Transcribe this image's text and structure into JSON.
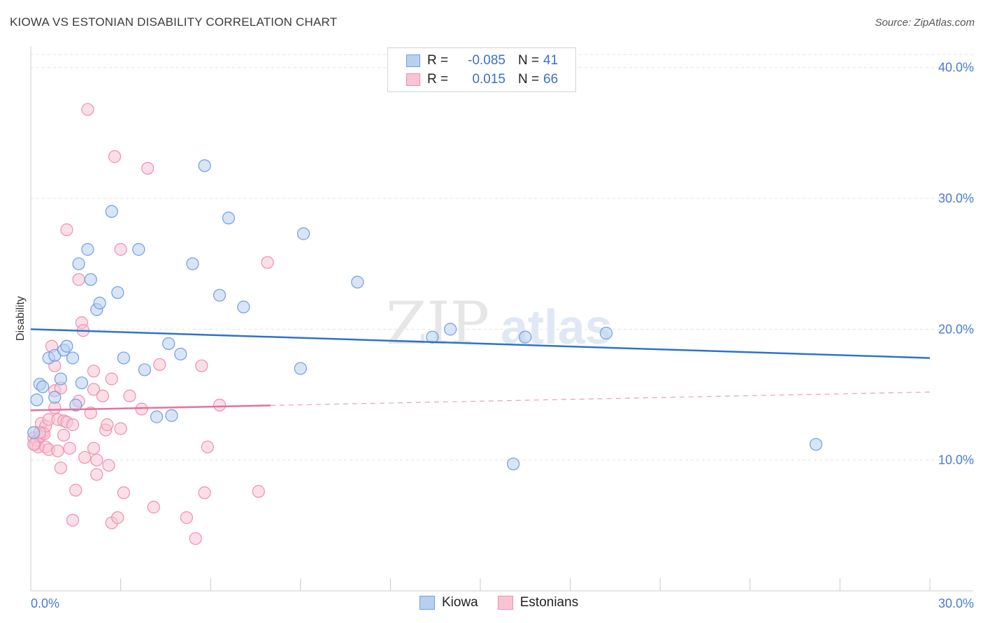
{
  "header": {
    "title": "KIOWA VS ESTONIAN DISABILITY CORRELATION CHART",
    "source": "Source: ZipAtlas.com"
  },
  "watermark": {
    "zip": "ZIP",
    "atlas": "atlas"
  },
  "legend": {
    "rows": [
      {
        "r_label": "R =",
        "r_value": "-0.085",
        "n_label": "N =",
        "n_value": "41",
        "fill": "#b8d0f0",
        "stroke": "#6e9fe0"
      },
      {
        "r_label": "R =",
        "r_value": "0.015",
        "n_label": "N =",
        "n_value": "66",
        "fill": "#f8c4d4",
        "stroke": "#ee8fae"
      }
    ]
  },
  "bottom_legend": {
    "items": [
      "Kiowa",
      "Estonians"
    ]
  },
  "chart_data": {
    "type": "scatter",
    "title": "KIOWA VS ESTONIAN DISABILITY CORRELATION CHART",
    "xlabel": "",
    "ylabel": "Disability",
    "xlim": [
      0,
      30
    ],
    "ylim": [
      0,
      41
    ],
    "x_tick_labels": [
      "0.0%",
      "30.0%"
    ],
    "y_ticks": [
      10,
      20,
      30,
      40
    ],
    "y_tick_labels": [
      "10.0%",
      "20.0%",
      "30.0%",
      "40.0%"
    ],
    "grid": true,
    "series": [
      {
        "name": "Kiowa",
        "color": "#6e9fe0",
        "fill": "#b8d0f0",
        "trend": {
          "x": [
            0,
            30
          ],
          "y": [
            20.0,
            17.8
          ],
          "dashed_from": null
        },
        "points": [
          [
            0.2,
            14.6
          ],
          [
            0.3,
            15.8
          ],
          [
            0.4,
            15.6
          ],
          [
            0.6,
            17.8
          ],
          [
            0.8,
            14.8
          ],
          [
            0.8,
            18.0
          ],
          [
            1.0,
            16.2
          ],
          [
            1.1,
            18.4
          ],
          [
            1.2,
            18.7
          ],
          [
            1.4,
            17.8
          ],
          [
            1.5,
            14.2
          ],
          [
            1.6,
            25.0
          ],
          [
            1.7,
            15.9
          ],
          [
            1.9,
            26.1
          ],
          [
            2.0,
            23.8
          ],
          [
            2.2,
            21.5
          ],
          [
            2.3,
            22.0
          ],
          [
            2.7,
            29.0
          ],
          [
            2.9,
            22.8
          ],
          [
            3.1,
            17.8
          ],
          [
            3.6,
            26.1
          ],
          [
            3.8,
            16.9
          ],
          [
            4.2,
            13.3
          ],
          [
            4.6,
            18.9
          ],
          [
            4.7,
            13.4
          ],
          [
            5.0,
            18.1
          ],
          [
            5.4,
            25.0
          ],
          [
            5.8,
            32.5
          ],
          [
            6.3,
            22.6
          ],
          [
            6.6,
            28.5
          ],
          [
            7.1,
            21.7
          ],
          [
            9.1,
            27.3
          ],
          [
            9.0,
            17.0
          ],
          [
            10.9,
            23.6
          ],
          [
            13.4,
            19.4
          ],
          [
            14.0,
            20.0
          ],
          [
            16.1,
            9.7
          ],
          [
            16.5,
            19.4
          ],
          [
            19.2,
            19.7
          ],
          [
            26.2,
            11.2
          ],
          [
            0.1,
            12.1
          ]
        ]
      },
      {
        "name": "Estonians",
        "color": "#ee8fae",
        "fill": "#f8c4d4",
        "trend": {
          "x": [
            0,
            30
          ],
          "y": [
            13.8,
            15.2
          ],
          "dashed_from": 8
        },
        "points": [
          [
            0.1,
            11.7
          ],
          [
            0.15,
            11.2
          ],
          [
            0.2,
            11.5
          ],
          [
            0.25,
            11.0
          ],
          [
            0.3,
            11.8
          ],
          [
            0.35,
            12.8
          ],
          [
            0.4,
            12.1
          ],
          [
            0.45,
            12.0
          ],
          [
            0.5,
            11.0
          ],
          [
            0.5,
            12.6
          ],
          [
            0.6,
            13.1
          ],
          [
            0.6,
            10.8
          ],
          [
            0.7,
            18.7
          ],
          [
            0.8,
            17.2
          ],
          [
            0.8,
            15.3
          ],
          [
            0.8,
            14.0
          ],
          [
            0.9,
            13.1
          ],
          [
            0.9,
            10.7
          ],
          [
            1.0,
            15.5
          ],
          [
            1.0,
            9.4
          ],
          [
            1.1,
            13.0
          ],
          [
            1.1,
            11.9
          ],
          [
            1.2,
            27.6
          ],
          [
            1.2,
            12.9
          ],
          [
            1.3,
            10.9
          ],
          [
            1.4,
            12.7
          ],
          [
            1.4,
            5.4
          ],
          [
            1.5,
            7.7
          ],
          [
            1.6,
            14.5
          ],
          [
            1.6,
            23.8
          ],
          [
            1.7,
            20.5
          ],
          [
            1.75,
            19.9
          ],
          [
            1.8,
            10.2
          ],
          [
            2.0,
            13.6
          ],
          [
            2.1,
            15.4
          ],
          [
            2.1,
            10.9
          ],
          [
            2.1,
            16.8
          ],
          [
            2.2,
            10.0
          ],
          [
            2.2,
            8.9
          ],
          [
            2.4,
            14.9
          ],
          [
            2.5,
            12.3
          ],
          [
            2.55,
            12.7
          ],
          [
            2.6,
            9.6
          ],
          [
            2.7,
            5.2
          ],
          [
            2.7,
            16.2
          ],
          [
            2.8,
            33.2
          ],
          [
            2.9,
            5.6
          ],
          [
            3.0,
            26.1
          ],
          [
            3.0,
            12.4
          ],
          [
            3.1,
            7.5
          ],
          [
            3.3,
            14.9
          ],
          [
            3.7,
            13.9
          ],
          [
            3.9,
            32.3
          ],
          [
            4.1,
            6.4
          ],
          [
            4.3,
            17.3
          ],
          [
            5.2,
            5.6
          ],
          [
            5.5,
            4.0
          ],
          [
            5.7,
            17.2
          ],
          [
            5.8,
            7.5
          ],
          [
            5.9,
            11.0
          ],
          [
            6.3,
            14.2
          ],
          [
            7.6,
            7.6
          ],
          [
            7.9,
            25.1
          ],
          [
            1.9,
            36.8
          ],
          [
            0.1,
            11.2
          ],
          [
            0.3,
            12.1
          ]
        ]
      }
    ]
  }
}
